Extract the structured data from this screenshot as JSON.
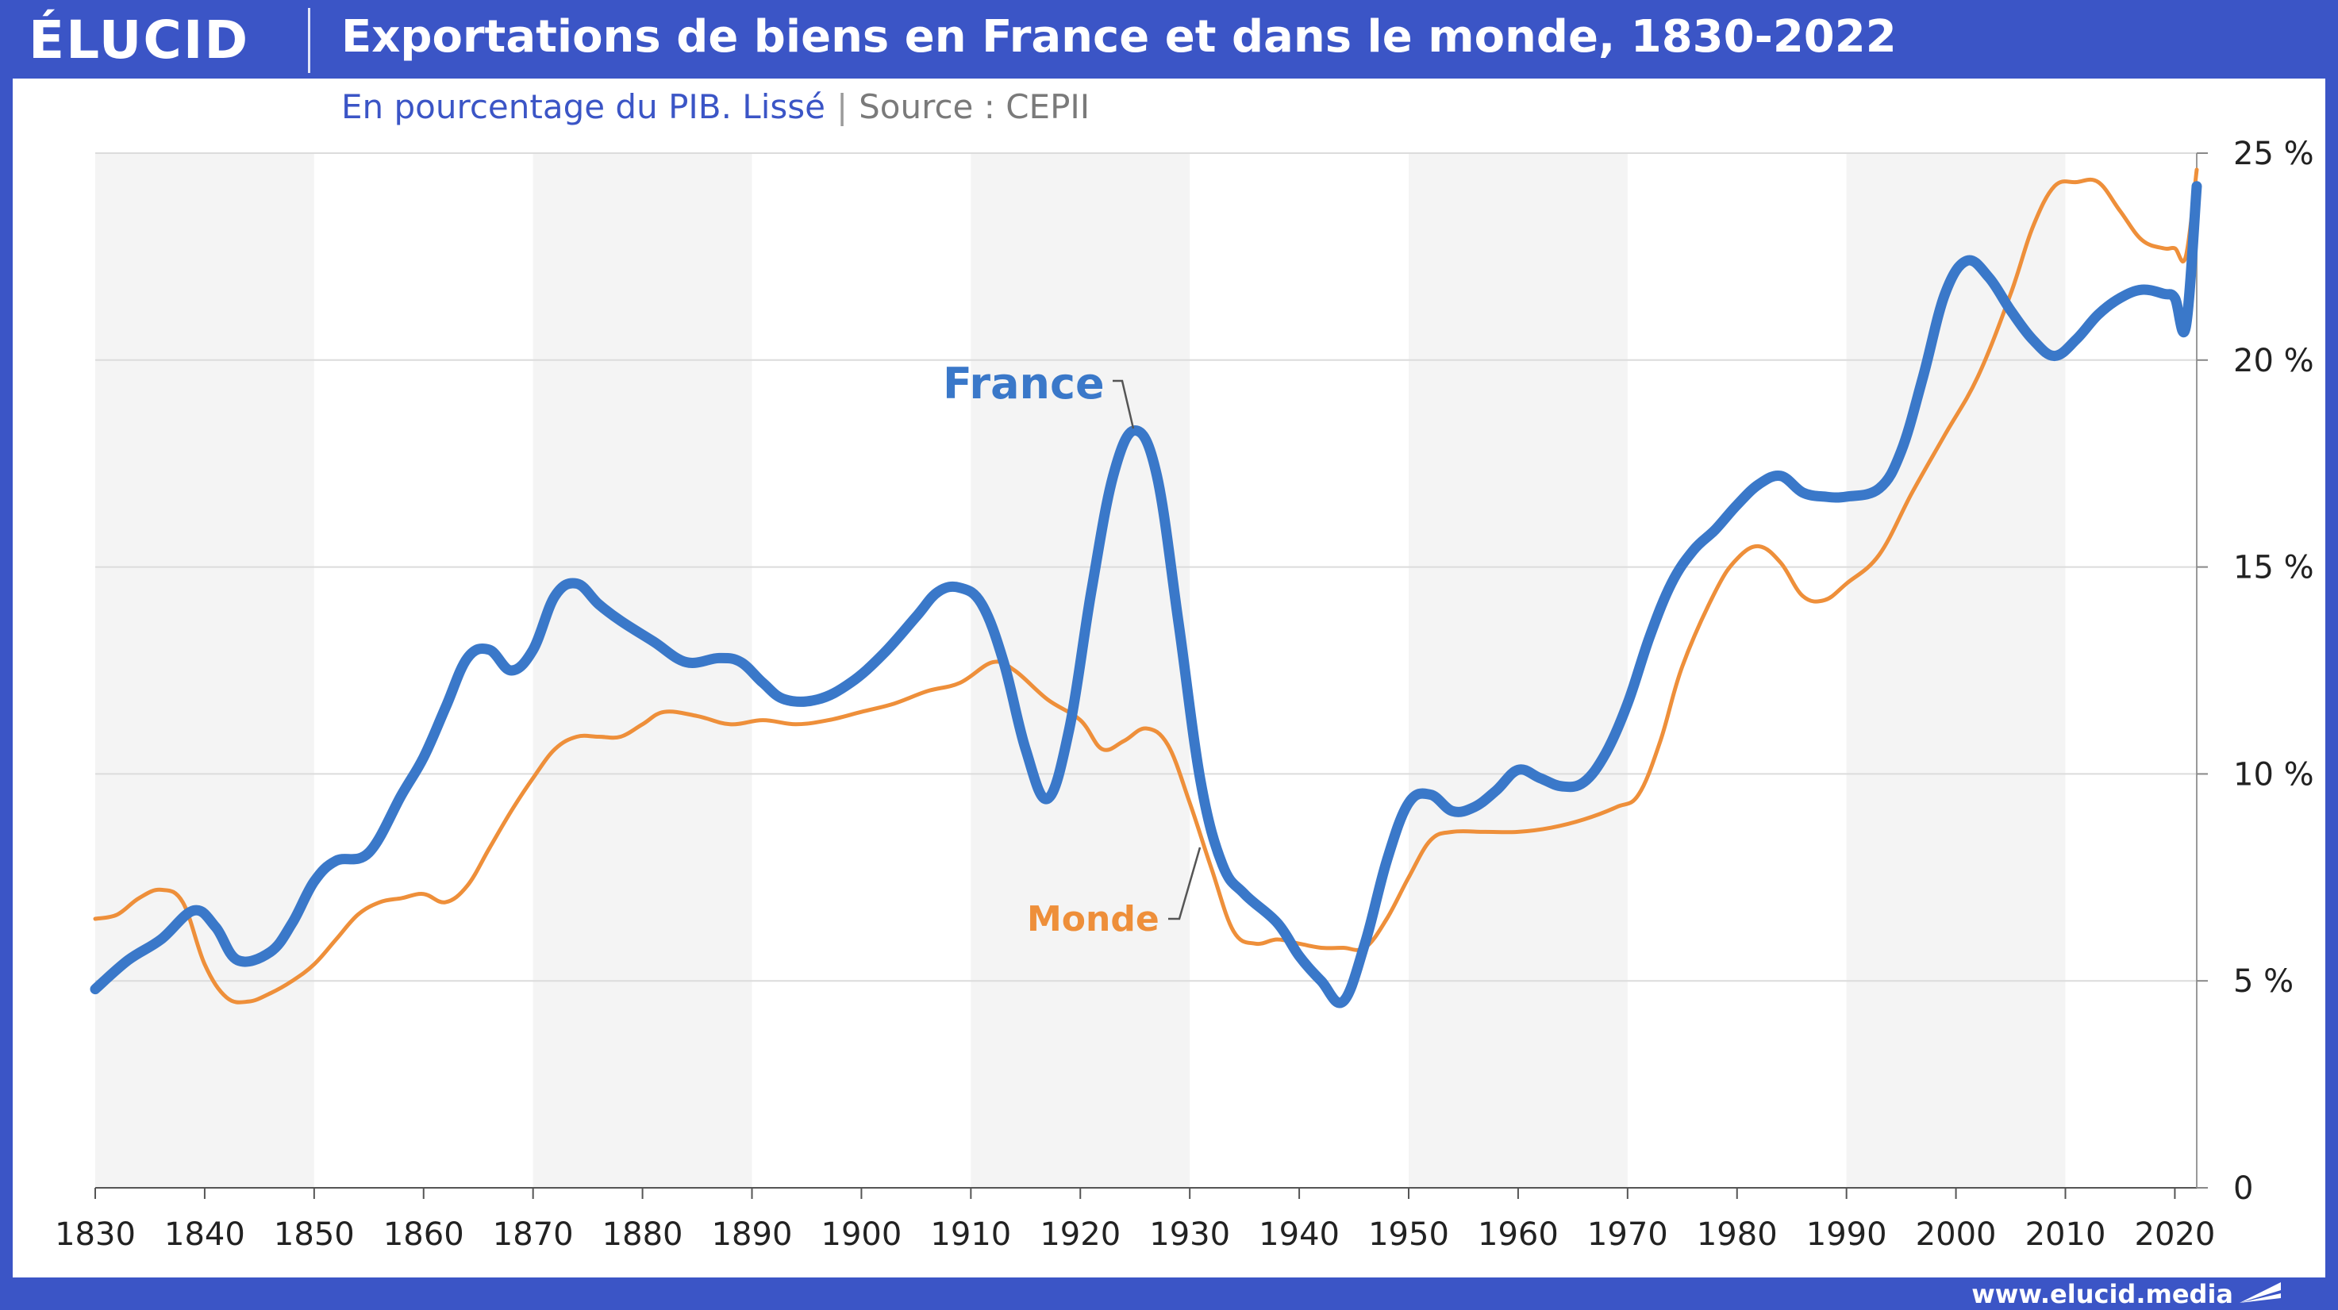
{
  "header": {
    "logo": "ÉLUCID",
    "title": "Exportations de biens en France et dans le monde, 1830-2022"
  },
  "subtitle": {
    "main": "En pourcentage du PIB. Lissé",
    "separator": "|",
    "source": "Source : CEPII"
  },
  "footer": {
    "url": "www.elucid.media"
  },
  "colors": {
    "france": "#3a78c9",
    "monde": "#ee8f3a",
    "band": "#f4f4f4",
    "grid": "#dcdcdc",
    "brand": "#3b55c6"
  },
  "chart_data": {
    "type": "line",
    "title": "Exportations de biens en France et dans le monde, 1830-2022",
    "subtitle": "En pourcentage du PIB. Lissé",
    "source": "Source : CEPII",
    "xlim": [
      1830,
      2022
    ],
    "ylim": [
      0,
      25
    ],
    "x_ticks": [
      "1830",
      "1840",
      "1850",
      "1860",
      "1870",
      "1880",
      "1890",
      "1900",
      "1910",
      "1920",
      "1930",
      "1940",
      "1950",
      "1960",
      "1970",
      "1980",
      "1990",
      "2000",
      "2010",
      "2020"
    ],
    "y_ticks": [
      "0",
      "5 %",
      "10 %",
      "15 %",
      "20 %",
      "25 %"
    ],
    "y_tick_values": [
      0,
      5,
      10,
      15,
      20,
      25
    ],
    "grid": "horizontal gridlines with alternating vertical decade bands",
    "series": [
      {
        "name": "France",
        "color": "#3a78c9",
        "x": [
          1830,
          1833,
          1836,
          1839,
          1841,
          1843,
          1846,
          1848,
          1850,
          1852,
          1855,
          1858,
          1860,
          1862,
          1864,
          1866,
          1868,
          1870,
          1872,
          1874,
          1876,
          1878,
          1881,
          1884,
          1887,
          1889,
          1891,
          1893,
          1896,
          1899,
          1902,
          1905,
          1907,
          1909,
          1911,
          1913,
          1915,
          1917,
          1919,
          1921,
          1923,
          1925,
          1927,
          1929,
          1931,
          1933,
          1935,
          1938,
          1940,
          1942,
          1944,
          1946,
          1948,
          1950,
          1952,
          1954,
          1956,
          1958,
          1960,
          1962,
          1964,
          1966,
          1968,
          1970,
          1972,
          1974,
          1976,
          1978,
          1980,
          1982,
          1984,
          1986,
          1988,
          1990,
          1993,
          1995,
          1997,
          1999,
          2001,
          2003,
          2005,
          2007,
          2009,
          2011,
          2013,
          2015,
          2017,
          2019,
          2020,
          2021,
          2022
        ],
        "values": [
          4.8,
          5.5,
          6.0,
          6.7,
          6.3,
          5.5,
          5.7,
          6.4,
          7.4,
          7.9,
          8.1,
          9.5,
          10.4,
          11.6,
          12.8,
          13.0,
          12.5,
          13.0,
          14.3,
          14.6,
          14.1,
          13.7,
          13.2,
          12.7,
          12.8,
          12.7,
          12.2,
          11.8,
          11.8,
          12.2,
          12.9,
          13.8,
          14.4,
          14.5,
          14.1,
          12.7,
          10.6,
          9.4,
          11.1,
          14.4,
          17.2,
          18.3,
          17.2,
          13.6,
          9.8,
          7.8,
          7.1,
          6.4,
          5.6,
          5.0,
          4.5,
          5.9,
          7.9,
          9.3,
          9.5,
          9.1,
          9.2,
          9.6,
          10.1,
          9.9,
          9.7,
          9.8,
          10.5,
          11.7,
          13.3,
          14.6,
          15.4,
          15.9,
          16.5,
          17.0,
          17.2,
          16.8,
          16.7,
          16.7,
          16.9,
          17.8,
          19.6,
          21.6,
          22.4,
          22.0,
          21.2,
          20.5,
          20.1,
          20.5,
          21.1,
          21.5,
          21.7,
          21.6,
          21.5,
          20.8,
          24.2
        ]
      },
      {
        "name": "Monde",
        "color": "#ee8f3a",
        "x": [
          1830,
          1832,
          1834,
          1836,
          1838,
          1840,
          1842,
          1844,
          1846,
          1848,
          1850,
          1852,
          1854,
          1856,
          1858,
          1860,
          1862,
          1864,
          1866,
          1868,
          1870,
          1872,
          1874,
          1876,
          1878,
          1880,
          1882,
          1885,
          1888,
          1891,
          1894,
          1897,
          1900,
          1903,
          1906,
          1909,
          1912,
          1914,
          1917,
          1920,
          1922,
          1924,
          1926,
          1928,
          1930,
          1932,
          1934,
          1936,
          1938,
          1940,
          1942,
          1944,
          1946,
          1948,
          1950,
          1952,
          1954,
          1957,
          1960,
          1963,
          1966,
          1969,
          1971,
          1973,
          1975,
          1978,
          1980,
          1982,
          1984,
          1986,
          1988,
          1990,
          1993,
          1996,
          1999,
          2002,
          2005,
          2007,
          2009,
          2011,
          2013,
          2015,
          2017,
          2019,
          2020,
          2021,
          2022
        ],
        "values": [
          6.5,
          6.6,
          7.0,
          7.2,
          6.9,
          5.4,
          4.6,
          4.5,
          4.7,
          5.0,
          5.4,
          6.0,
          6.6,
          6.9,
          7.0,
          7.1,
          6.9,
          7.3,
          8.2,
          9.1,
          9.9,
          10.6,
          10.9,
          10.9,
          10.9,
          11.2,
          11.5,
          11.4,
          11.2,
          11.3,
          11.2,
          11.3,
          11.5,
          11.7,
          12.0,
          12.2,
          12.7,
          12.5,
          11.8,
          11.3,
          10.6,
          10.8,
          11.1,
          10.7,
          9.3,
          7.7,
          6.2,
          5.9,
          6.0,
          5.9,
          5.8,
          5.8,
          5.8,
          6.5,
          7.5,
          8.4,
          8.6,
          8.6,
          8.6,
          8.7,
          8.9,
          9.2,
          9.5,
          10.8,
          12.6,
          14.4,
          15.2,
          15.5,
          15.1,
          14.3,
          14.2,
          14.6,
          15.3,
          16.8,
          18.2,
          19.6,
          21.6,
          23.2,
          24.2,
          24.3,
          24.3,
          23.6,
          22.9,
          22.7,
          22.7,
          22.5,
          24.6
        ]
      }
    ],
    "annotations": [
      {
        "text": "France",
        "series": "France"
      },
      {
        "text": "Monde",
        "series": "Monde"
      }
    ]
  }
}
